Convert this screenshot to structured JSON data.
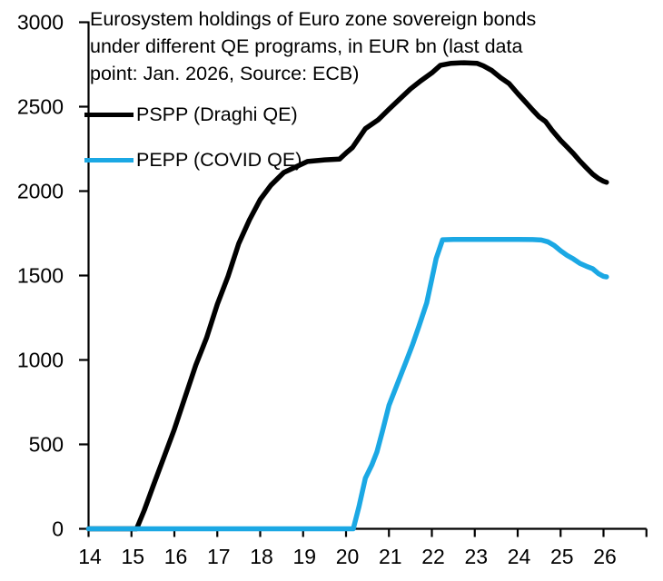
{
  "chart_data": {
    "type": "line",
    "title": "Eurosystem holdings of Euro zone sovereign bonds under different QE programs, in EUR bn (last data point: Jan. 2026, Source: ECB)",
    "title_lines": [
      "Eurosystem holdings of Euro zone sovereign bonds",
      "under different QE programs, in EUR bn (last data",
      "point: Jan. 2026, Source: ECB)"
    ],
    "y_unit": "EUR bn",
    "x_unit": "year (2014-2026)",
    "source": "ECB",
    "last_data_point": "Jan. 2026",
    "grid": false,
    "legend_position": "top-left-inside",
    "xlim": [
      14,
      27
    ],
    "ylim": [
      0,
      3000
    ],
    "xticks": [
      14,
      15,
      16,
      17,
      18,
      19,
      20,
      21,
      22,
      23,
      24,
      25,
      26
    ],
    "yticks": [
      0,
      500,
      1000,
      1500,
      2000,
      2500,
      3000
    ],
    "series": [
      {
        "name": "PSPP (Draghi QE)",
        "color": "#000000",
        "points": [
          [
            14.0,
            0
          ],
          [
            15.12,
            0
          ],
          [
            15.3,
            110
          ],
          [
            15.5,
            250
          ],
          [
            15.75,
            420
          ],
          [
            16.0,
            590
          ],
          [
            16.25,
            780
          ],
          [
            16.5,
            970
          ],
          [
            16.75,
            1130
          ],
          [
            17.0,
            1330
          ],
          [
            17.25,
            1495
          ],
          [
            17.5,
            1690
          ],
          [
            17.75,
            1830
          ],
          [
            18.0,
            1950
          ],
          [
            18.25,
            2035
          ],
          [
            18.55,
            2110
          ],
          [
            18.8,
            2140
          ],
          [
            19.1,
            2175
          ],
          [
            19.5,
            2185
          ],
          [
            19.85,
            2190
          ],
          [
            20.0,
            2225
          ],
          [
            20.15,
            2258
          ],
          [
            20.45,
            2370
          ],
          [
            20.75,
            2422
          ],
          [
            21.0,
            2485
          ],
          [
            21.25,
            2545
          ],
          [
            21.5,
            2605
          ],
          [
            21.75,
            2655
          ],
          [
            22.0,
            2700
          ],
          [
            22.2,
            2745
          ],
          [
            22.45,
            2757
          ],
          [
            22.75,
            2760
          ],
          [
            23.05,
            2757
          ],
          [
            23.2,
            2742
          ],
          [
            23.4,
            2714
          ],
          [
            23.6,
            2672
          ],
          [
            23.8,
            2637
          ],
          [
            24.0,
            2578
          ],
          [
            24.2,
            2522
          ],
          [
            24.35,
            2480
          ],
          [
            24.5,
            2440
          ],
          [
            24.65,
            2412
          ],
          [
            24.8,
            2360
          ],
          [
            25.0,
            2300
          ],
          [
            25.15,
            2262
          ],
          [
            25.3,
            2222
          ],
          [
            25.45,
            2178
          ],
          [
            25.6,
            2138
          ],
          [
            25.75,
            2100
          ],
          [
            25.88,
            2075
          ],
          [
            26.0,
            2058
          ],
          [
            26.07,
            2052
          ]
        ]
      },
      {
        "name": "PEPP (COVID QE)",
        "color": "#1BA8E4",
        "points": [
          [
            14.0,
            0
          ],
          [
            20.17,
            0
          ],
          [
            20.3,
            130
          ],
          [
            20.45,
            300
          ],
          [
            20.6,
            378
          ],
          [
            20.72,
            455
          ],
          [
            20.85,
            580
          ],
          [
            21.0,
            731
          ],
          [
            21.2,
            861
          ],
          [
            21.4,
            990
          ],
          [
            21.55,
            1090
          ],
          [
            21.7,
            1200
          ],
          [
            21.88,
            1337
          ],
          [
            22.0,
            1480
          ],
          [
            22.1,
            1600
          ],
          [
            22.25,
            1712
          ],
          [
            22.5,
            1714
          ],
          [
            23.0,
            1714
          ],
          [
            23.5,
            1714
          ],
          [
            24.0,
            1714
          ],
          [
            24.35,
            1713
          ],
          [
            24.55,
            1710
          ],
          [
            24.7,
            1700
          ],
          [
            24.85,
            1678
          ],
          [
            25.0,
            1646
          ],
          [
            25.15,
            1620
          ],
          [
            25.3,
            1598
          ],
          [
            25.45,
            1572
          ],
          [
            25.6,
            1555
          ],
          [
            25.75,
            1540
          ],
          [
            25.88,
            1512
          ],
          [
            26.0,
            1495
          ],
          [
            26.07,
            1492
          ]
        ]
      }
    ]
  }
}
